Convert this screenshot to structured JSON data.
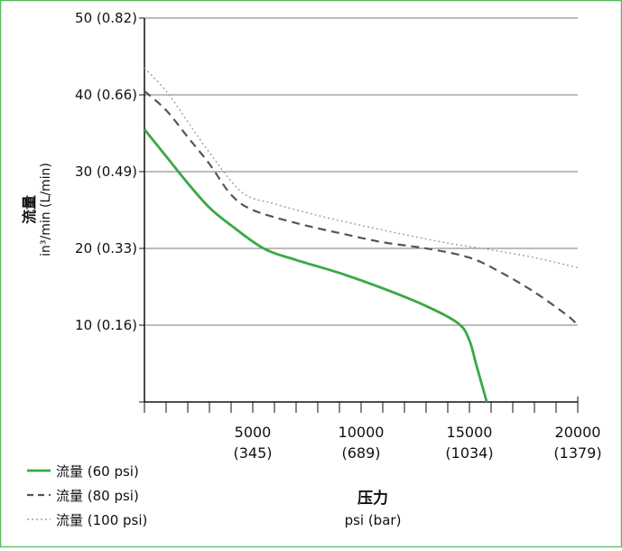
{
  "chart_data": {
    "type": "line",
    "title": "",
    "ylabel": "流量",
    "ylabel_unit": "in³/min (L/min)",
    "xlabel": "压力",
    "xlabel_unit": "psi (bar)",
    "xlim": [
      0,
      20000
    ],
    "ylim": [
      0,
      50
    ],
    "y_ticks": [
      {
        "value": 10,
        "label": "10 (0.16)"
      },
      {
        "value": 20,
        "label": "20 (0.33)"
      },
      {
        "value": 30,
        "label": "30 (0.49)"
      },
      {
        "value": 40,
        "label": "40 (0.66)"
      },
      {
        "value": 50,
        "label": "50 (0.82)"
      }
    ],
    "x_ticks": [
      {
        "value": 5000,
        "label": "5000",
        "sublabel": "(345)"
      },
      {
        "value": 10000,
        "label": "10000",
        "sublabel": "(689)"
      },
      {
        "value": 15000,
        "label": "15000",
        "sublabel": "(1034)"
      },
      {
        "value": 20000,
        "label": "20000",
        "sublabel": "(1379)"
      }
    ],
    "x_minor_step": 1000,
    "grid": "horizontal",
    "legend_position": "bottom-left",
    "series": [
      {
        "name": "流量 (60 psi)",
        "style": "solid",
        "color": "#3aa845",
        "x": [
          0,
          1000,
          2000,
          3000,
          4000,
          5500,
          7000,
          9000,
          11000,
          13000,
          14500,
          15000,
          15300,
          15600,
          15800
        ],
        "y": [
          35.5,
          32,
          28.5,
          25.3,
          23,
          20,
          18.5,
          16.8,
          14.8,
          12.5,
          10.2,
          8,
          5,
          2,
          0
        ]
      },
      {
        "name": "流量 (80 psi)",
        "style": "dashed",
        "color": "#555555",
        "x": [
          0,
          1000,
          2000,
          3000,
          4000,
          5000,
          7000,
          9000,
          11000,
          13000,
          15000,
          16500,
          18000,
          19500,
          20000
        ],
        "y": [
          40.5,
          38,
          34.5,
          31,
          27,
          25,
          23.3,
          22,
          20.8,
          20,
          18.8,
          16.8,
          14.3,
          11.3,
          10
        ]
      },
      {
        "name": "流量 (100 psi)",
        "style": "dotted",
        "color": "#8fa3b8",
        "x": [
          0,
          1000,
          2000,
          3000,
          4500,
          6000,
          8000,
          10000,
          12000,
          14000,
          16000,
          18000,
          20000
        ],
        "y": [
          43.5,
          40.5,
          36.5,
          32.5,
          27.3,
          25.8,
          24.3,
          23,
          21.8,
          20.7,
          19.8,
          18.8,
          17.5
        ]
      }
    ]
  },
  "colors": {
    "frame_border": "#55b95c",
    "grid": "#7a7a7a",
    "axis": "#111111"
  }
}
